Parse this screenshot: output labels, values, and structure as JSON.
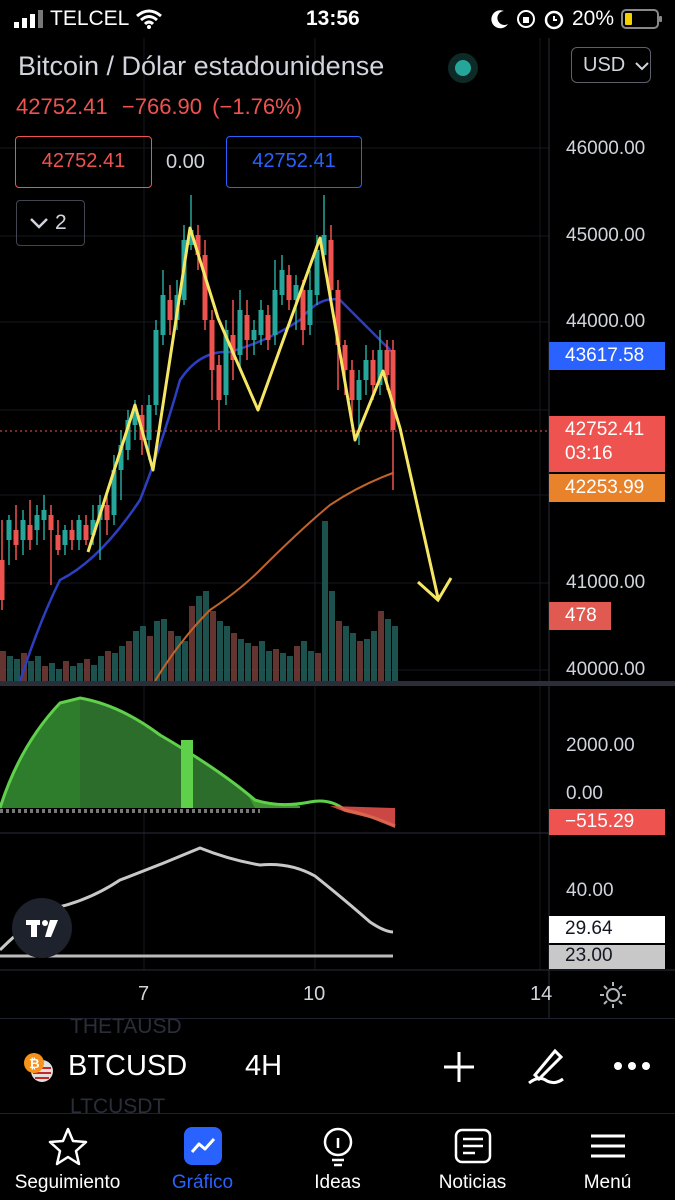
{
  "status_bar": {
    "carrier": "TELCEL",
    "time": "13:56",
    "battery": "20%"
  },
  "header": {
    "title": "Bitcoin / Dólar estadounidense",
    "quote": {
      "last": "42752.41",
      "change": "−766.90",
      "change_pct": "(−1.76%)"
    },
    "currency": "USD",
    "live_indicator_color": "#26a69a"
  },
  "order_boxes": {
    "sell": "42752.41",
    "spread": "0.00",
    "buy": "42752.41"
  },
  "indicators_toggle": {
    "count": "2"
  },
  "price_axis": {
    "labels": [
      "46000.00",
      "45000.00",
      "44000.00",
      "41000.00",
      "40000.00"
    ],
    "tags": {
      "ema_blue": "43617.58",
      "last_price": "42752.41",
      "countdown": "03:16",
      "ema_orange": "42253.99",
      "volume": "478"
    }
  },
  "macd_axis": {
    "labels": [
      "2000.00",
      "0.00"
    ],
    "value": "−515.29"
  },
  "rsi_axis": {
    "labels": [
      "40.00"
    ],
    "value": "29.64",
    "level": "23.00"
  },
  "time_axis": {
    "labels": [
      "7",
      "10",
      "14"
    ]
  },
  "background_list": {
    "items": [
      "THETAUSD",
      "LTCUSDT"
    ]
  },
  "symbol_bar": {
    "symbol": "BTCUSD",
    "interval": "4H"
  },
  "tab_bar": {
    "items": [
      {
        "label": "Seguimiento",
        "icon": "star-icon"
      },
      {
        "label": "Gráfico",
        "icon": "chart-icon"
      },
      {
        "label": "Ideas",
        "icon": "lightbulb-icon"
      },
      {
        "label": "Noticias",
        "icon": "newspaper-icon"
      },
      {
        "label": "Menú",
        "icon": "hamburger-icon"
      }
    ]
  },
  "colors": {
    "up": "#26a69a",
    "down": "#ef5350",
    "accent": "#2962ff",
    "pattern": "#f5e663",
    "ema_fast": "#2c3fc0",
    "ema_slow": "#c0642a"
  }
}
